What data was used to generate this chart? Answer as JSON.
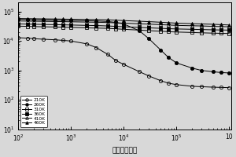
{
  "title": "",
  "xlabel": "频率（赫兹）",
  "ylabel": "",
  "xmin": 100,
  "xmax": 1100000,
  "ymin": 10,
  "ymax": 200000,
  "background_color": "#d8d8d8",
  "series": [
    {
      "label": "210K",
      "marker": "o",
      "fillstyle": "none",
      "color": "black",
      "x": [
        100,
        150,
        200,
        300,
        500,
        700,
        1000,
        2000,
        3000,
        5000,
        7000,
        10000,
        20000,
        30000,
        50000,
        70000,
        100000,
        200000,
        300000,
        500000,
        700000,
        1000000
      ],
      "y": [
        13000,
        12500,
        12000,
        11500,
        11000,
        10500,
        10000,
        8000,
        6000,
        3500,
        2200,
        1600,
        900,
        650,
        450,
        370,
        330,
        290,
        280,
        270,
        265,
        260
      ]
    },
    {
      "label": "260K",
      "marker": "o",
      "fillstyle": "full",
      "color": "black",
      "x": [
        100,
        150,
        200,
        300,
        500,
        700,
        1000,
        2000,
        3000,
        5000,
        7000,
        10000,
        20000,
        30000,
        50000,
        70000,
        100000,
        200000,
        300000,
        500000,
        700000,
        1000000
      ],
      "y": [
        55000,
        54000,
        53000,
        52000,
        51000,
        50500,
        50000,
        49000,
        48000,
        46000,
        43000,
        38000,
        22000,
        12000,
        5000,
        2800,
        1800,
        1200,
        1000,
        900,
        850,
        820
      ]
    },
    {
      "label": "310K",
      "marker": "s",
      "fillstyle": "none",
      "color": "black",
      "x": [
        100,
        150,
        200,
        300,
        500,
        700,
        1000,
        2000,
        3000,
        5000,
        7000,
        10000,
        20000,
        30000,
        50000,
        70000,
        100000,
        200000,
        300000,
        500000,
        700000,
        1000000
      ],
      "y": [
        32000,
        31500,
        31000,
        30500,
        30000,
        29500,
        29000,
        28000,
        27500,
        27000,
        26000,
        25000,
        23500,
        22500,
        21500,
        20800,
        20200,
        19500,
        19000,
        18500,
        18200,
        18000
      ]
    },
    {
      "label": "360K",
      "marker": "s",
      "fillstyle": "full",
      "color": "black",
      "x": [
        100,
        150,
        200,
        300,
        500,
        700,
        1000,
        2000,
        3000,
        5000,
        7000,
        10000,
        20000,
        30000,
        50000,
        70000,
        100000,
        200000,
        300000,
        500000,
        700000,
        1000000
      ],
      "y": [
        38000,
        37500,
        37000,
        36500,
        36000,
        35500,
        35000,
        34000,
        33500,
        32500,
        31500,
        30500,
        29000,
        28000,
        27000,
        26300,
        25700,
        25000,
        24500,
        24000,
        23700,
        23500
      ]
    },
    {
      "label": "410K",
      "marker": "^",
      "fillstyle": "none",
      "color": "black",
      "x": [
        100,
        150,
        200,
        300,
        500,
        700,
        1000,
        2000,
        3000,
        5000,
        7000,
        10000,
        20000,
        30000,
        50000,
        70000,
        100000,
        200000,
        300000,
        500000,
        700000,
        1000000
      ],
      "y": [
        48000,
        47500,
        47000,
        46500,
        46000,
        45500,
        45000,
        44000,
        43500,
        42500,
        41500,
        40500,
        38500,
        37500,
        36000,
        35000,
        34000,
        33000,
        32500,
        31500,
        31000,
        30500
      ]
    },
    {
      "label": "460K",
      "marker": "^",
      "fillstyle": "full",
      "color": "black",
      "x": [
        100,
        150,
        200,
        300,
        500,
        700,
        1000,
        2000,
        3000,
        5000,
        7000,
        10000,
        20000,
        30000,
        50000,
        70000,
        100000,
        200000,
        300000,
        500000,
        700000,
        1000000
      ],
      "y": [
        58000,
        57500,
        57000,
        56500,
        56000,
        55500,
        55000,
        54000,
        53500,
        52500,
        51000,
        49500,
        47000,
        45500,
        43500,
        42000,
        40500,
        39000,
        38000,
        37000,
        36000,
        35000
      ]
    }
  ]
}
